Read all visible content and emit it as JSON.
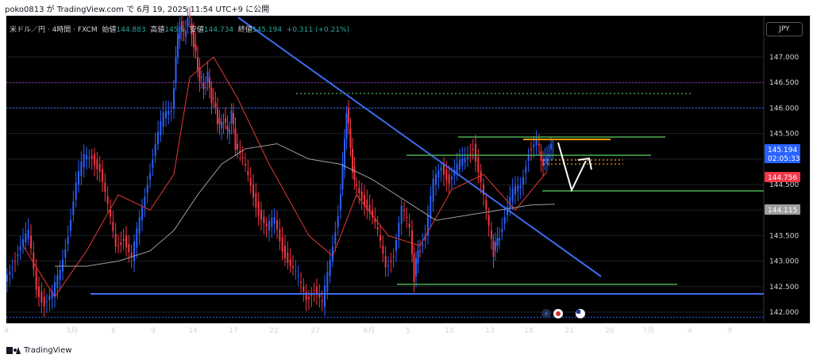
{
  "caption": "poko0813 が TradingView.com で 6月 19, 2025 11:54 UTC+9 に公開",
  "brand": "TradingView",
  "header": {
    "symbol": "米ドル／円 · 4時間 · FXCM",
    "open_label": "始値",
    "open": "144.883",
    "high_label": "高値",
    "high": "145.2",
    "low_label": "安値",
    "low": "144.734",
    "close_label": "終値",
    "close": "145.194",
    "change": "+0.311 (+0.21%)"
  },
  "currency": "JPY",
  "colors": {
    "up": "#26a69a",
    "down": "#ef5350",
    "blue_candle": "#2962ff",
    "red_candle": "#f23645",
    "trend": "#3d6bf2",
    "green": "#4caf50",
    "orange": "#ff9800",
    "ma_red": "#e53935",
    "ma_grey": "#9e9e9e"
  },
  "chart_data": {
    "type": "line",
    "title": "米ドル／円 · 4時間 · FXCM",
    "ylim": [
      141.8,
      147.6
    ],
    "y_ticks": [
      "147.000",
      "146.500",
      "146.000",
      "145.500",
      "145.000",
      "144.500",
      "144.000",
      "143.500",
      "143.000",
      "142.500",
      "142.000"
    ],
    "x_ticks": [
      "4",
      "5月",
      "6",
      "9",
      "14",
      "17",
      "22",
      "27",
      "6月",
      "5",
      "10",
      "13",
      "18",
      "21",
      "26",
      "7月",
      "4",
      "9"
    ],
    "price_labels": [
      {
        "text": "145.194",
        "sub": "02:05:33",
        "color": "#2962ff"
      },
      {
        "text": "144.756",
        "color": "#f23645"
      },
      {
        "text": "144.115",
        "color": "#9e9e9e"
      }
    ],
    "series": [
      {
        "name": "",
        "points": [
          [
            0,
            142.6
          ],
          [
            10,
            143.0
          ],
          [
            20,
            143.3
          ],
          [
            30,
            143.5
          ],
          [
            40,
            142.5
          ],
          [
            50,
            142.2
          ],
          [
            60,
            142.3
          ],
          [
            70,
            142.8
          ],
          [
            80,
            143.6
          ],
          [
            90,
            144.5
          ],
          [
            100,
            145.0
          ],
          [
            110,
            145.1
          ],
          [
            120,
            144.8
          ],
          [
            130,
            144.0
          ],
          [
            140,
            143.3
          ],
          [
            150,
            143.5
          ],
          [
            160,
            143.0
          ],
          [
            170,
            143.8
          ],
          [
            180,
            144.6
          ],
          [
            190,
            145.3
          ],
          [
            200,
            145.8
          ],
          [
            210,
            146.0
          ],
          [
            215,
            147.0
          ],
          [
            220,
            147.7
          ],
          [
            225,
            147.4
          ],
          [
            230,
            147.8
          ],
          [
            235,
            147.5
          ],
          [
            240,
            147.0
          ],
          [
            245,
            146.6
          ],
          [
            250,
            146.4
          ],
          [
            255,
            146.6
          ],
          [
            260,
            146.2
          ],
          [
            265,
            146.0
          ],
          [
            270,
            145.6
          ],
          [
            275,
            145.8
          ],
          [
            280,
            145.5
          ],
          [
            285,
            145.9
          ],
          [
            290,
            145.3
          ],
          [
            300,
            144.9
          ],
          [
            310,
            144.5
          ],
          [
            320,
            144.0
          ],
          [
            330,
            143.6
          ],
          [
            340,
            143.8
          ],
          [
            350,
            143.3
          ],
          [
            360,
            142.9
          ],
          [
            370,
            142.6
          ],
          [
            380,
            142.3
          ],
          [
            390,
            142.5
          ],
          [
            400,
            142.1
          ],
          [
            410,
            143.0
          ],
          [
            420,
            144.0
          ],
          [
            425,
            144.8
          ],
          [
            430,
            146.0
          ],
          [
            435,
            145.2
          ],
          [
            440,
            144.5
          ],
          [
            450,
            144.3
          ],
          [
            460,
            144.0
          ],
          [
            470,
            143.5
          ],
          [
            480,
            142.9
          ],
          [
            490,
            143.2
          ],
          [
            500,
            144.0
          ],
          [
            510,
            143.6
          ],
          [
            515,
            142.7
          ],
          [
            520,
            143.2
          ],
          [
            530,
            143.5
          ],
          [
            540,
            144.5
          ],
          [
            550,
            144.9
          ],
          [
            560,
            144.6
          ],
          [
            570,
            144.8
          ],
          [
            580,
            145.0
          ],
          [
            590,
            145.3
          ],
          [
            600,
            144.5
          ],
          [
            610,
            143.6
          ],
          [
            615,
            143.2
          ],
          [
            620,
            143.4
          ],
          [
            630,
            143.9
          ],
          [
            640,
            144.3
          ],
          [
            650,
            144.5
          ],
          [
            660,
            145.2
          ],
          [
            670,
            145.3
          ],
          [
            675,
            145.0
          ],
          [
            680,
            144.9
          ],
          [
            685,
            145.2
          ],
          [
            690,
            145.194
          ]
        ]
      },
      {
        "name": "",
        "points": [
          [
            20,
            143.3
          ],
          [
            60,
            142.3
          ],
          [
            100,
            143.2
          ],
          [
            140,
            144.3
          ],
          [
            180,
            144.0
          ],
          [
            210,
            144.7
          ],
          [
            230,
            146.6
          ],
          [
            260,
            147.0
          ],
          [
            290,
            146.2
          ],
          [
            330,
            144.9
          ],
          [
            380,
            143.5
          ],
          [
            410,
            143.1
          ],
          [
            440,
            144.3
          ],
          [
            480,
            143.5
          ],
          [
            520,
            143.3
          ],
          [
            560,
            144.4
          ],
          [
            600,
            144.7
          ],
          [
            640,
            144.0
          ],
          [
            680,
            144.756
          ]
        ]
      },
      {
        "name": "",
        "points": [
          [
            60,
            142.9
          ],
          [
            100,
            142.9
          ],
          [
            140,
            143.0
          ],
          [
            180,
            143.2
          ],
          [
            210,
            143.6
          ],
          [
            240,
            144.3
          ],
          [
            270,
            144.9
          ],
          [
            300,
            145.2
          ],
          [
            340,
            145.3
          ],
          [
            380,
            145.0
          ],
          [
            420,
            144.9
          ],
          [
            460,
            144.6
          ],
          [
            500,
            144.2
          ],
          [
            540,
            143.8
          ],
          [
            580,
            143.9
          ],
          [
            620,
            144.0
          ],
          [
            660,
            144.1
          ],
          [
            690,
            144.115
          ]
        ]
      }
    ]
  }
}
